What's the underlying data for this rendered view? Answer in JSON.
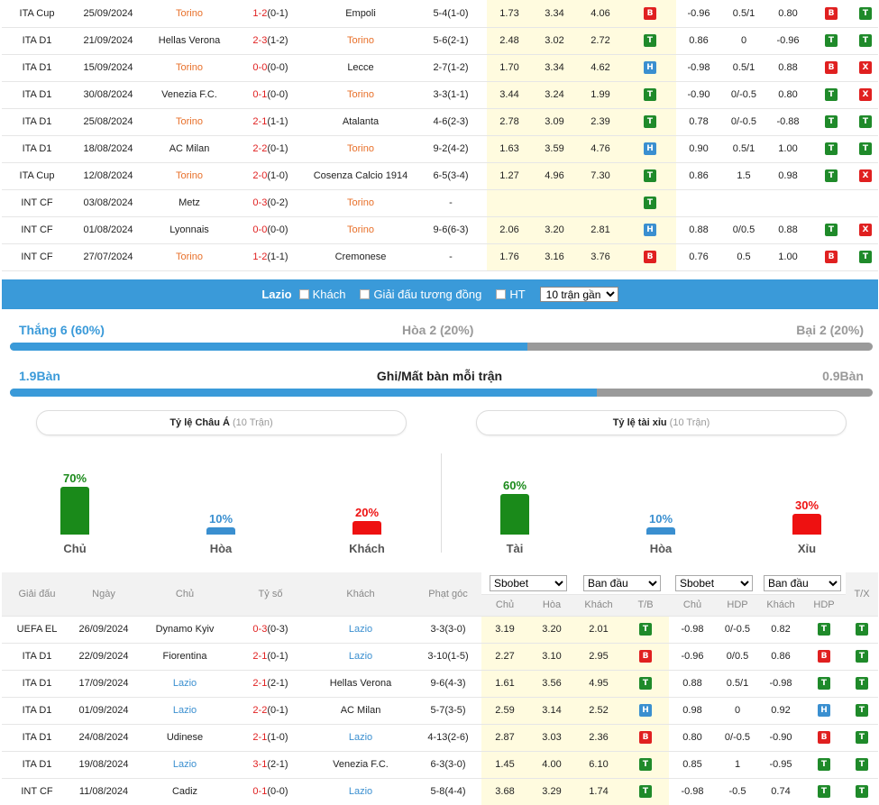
{
  "top_rows": [
    {
      "league": "ITA Cup",
      "date": "25/09/2024",
      "home": "Torino",
      "score": "1-2",
      "ht": "(0-1)",
      "away": "Empoli",
      "corner": "5-4(1-0)",
      "o1": "1.73",
      "o2": "3.34",
      "o3": "4.06",
      "res": "B",
      "h1": "-0.96",
      "h2": "0.5/1",
      "h3": "0.80",
      "r1": "B",
      "r2": "T",
      "hl": "home"
    },
    {
      "league": "ITA D1",
      "date": "21/09/2024",
      "home": "Hellas Verona",
      "score": "2-3",
      "ht": "(1-2)",
      "away": "Torino",
      "corner": "5-6(2-1)",
      "o1": "2.48",
      "o2": "3.02",
      "o3": "2.72",
      "res": "T",
      "h1": "0.86",
      "h2": "0",
      "h3": "-0.96",
      "r1": "T",
      "r2": "T",
      "hl": "away"
    },
    {
      "league": "ITA D1",
      "date": "15/09/2024",
      "home": "Torino",
      "score": "0-0",
      "ht": "(0-0)",
      "away": "Lecce",
      "corner": "2-7(1-2)",
      "o1": "1.70",
      "o2": "3.34",
      "o3": "4.62",
      "res": "H",
      "h1": "-0.98",
      "h2": "0.5/1",
      "h3": "0.88",
      "r1": "B",
      "r2": "X",
      "hl": "home"
    },
    {
      "league": "ITA D1",
      "date": "30/08/2024",
      "home": "Venezia F.C.",
      "score": "0-1",
      "ht": "(0-0)",
      "away": "Torino",
      "corner": "3-3(1-1)",
      "o1": "3.44",
      "o2": "3.24",
      "o3": "1.99",
      "res": "T",
      "h1": "-0.90",
      "h2": "0/-0.5",
      "h3": "0.80",
      "r1": "T",
      "r2": "X",
      "hl": "away"
    },
    {
      "league": "ITA D1",
      "date": "25/08/2024",
      "home": "Torino",
      "score": "2-1",
      "ht": "(1-1)",
      "away": "Atalanta",
      "corner": "4-6(2-3)",
      "o1": "2.78",
      "o2": "3.09",
      "o3": "2.39",
      "res": "T",
      "h1": "0.78",
      "h2": "0/-0.5",
      "h3": "-0.88",
      "r1": "T",
      "r2": "T",
      "hl": "home"
    },
    {
      "league": "ITA D1",
      "date": "18/08/2024",
      "home": "AC Milan",
      "score": "2-2",
      "ht": "(0-1)",
      "away": "Torino",
      "corner": "9-2(4-2)",
      "o1": "1.63",
      "o2": "3.59",
      "o3": "4.76",
      "res": "H",
      "h1": "0.90",
      "h2": "0.5/1",
      "h3": "1.00",
      "r1": "T",
      "r2": "T",
      "hl": "away"
    },
    {
      "league": "ITA Cup",
      "date": "12/08/2024",
      "home": "Torino",
      "score": "2-0",
      "ht": "(1-0)",
      "away": "Cosenza Calcio 1914",
      "corner": "6-5(3-4)",
      "o1": "1.27",
      "o2": "4.96",
      "o3": "7.30",
      "res": "T",
      "h1": "0.86",
      "h2": "1.5",
      "h3": "0.98",
      "r1": "T",
      "r2": "X",
      "hl": "home"
    },
    {
      "league": "INT CF",
      "date": "03/08/2024",
      "home": "Metz",
      "score": "0-3",
      "ht": "(0-2)",
      "away": "Torino",
      "corner": "-",
      "o1": "",
      "o2": "",
      "o3": "",
      "res": "T",
      "h1": "",
      "h2": "",
      "h3": "",
      "r1": "",
      "r2": "",
      "hl": "away"
    },
    {
      "league": "INT CF",
      "date": "01/08/2024",
      "home": "Lyonnais",
      "score": "0-0",
      "ht": "(0-0)",
      "away": "Torino",
      "corner": "9-6(6-3)",
      "o1": "2.06",
      "o2": "3.20",
      "o3": "2.81",
      "res": "H",
      "h1": "0.88",
      "h2": "0/0.5",
      "h3": "0.88",
      "r1": "T",
      "r2": "X",
      "hl": "away"
    },
    {
      "league": "INT CF",
      "date": "27/07/2024",
      "home": "Torino",
      "score": "1-2",
      "ht": "(1-1)",
      "away": "Cremonese",
      "corner": "-",
      "o1": "1.76",
      "o2": "3.16",
      "o3": "3.76",
      "res": "B",
      "h1": "0.76",
      "h2": "0.5",
      "h3": "1.00",
      "r1": "B",
      "r2": "T",
      "hl": "home"
    }
  ],
  "filter_bar": {
    "team": "Lazio",
    "opt_away": "Khách",
    "opt_same_league": "Giải đấu tương đồng",
    "opt_ht": "HT",
    "select_value": "10 trận gần"
  },
  "summary": {
    "win": "Thắng 6 (60%)",
    "draw": "Hòa 2 (20%)",
    "loss": "Bại 2 (20%)",
    "win_fraction": 0.6,
    "goals_for": "1.9Bàn",
    "goals_title": "Ghi/Mất bàn mỗi trận",
    "goals_against": "0.9Bàn",
    "goals_fraction": 0.68
  },
  "asian_box": {
    "title": "Tỷ lệ Châu Á",
    "sub": "(10 Trận)"
  },
  "ou_box": {
    "title": "Tỷ lệ tài xỉu",
    "sub": "(10 Trận)"
  },
  "asian_bars": [
    {
      "pct": "70%",
      "value": 70,
      "label": "Chủ",
      "color": "#1a8a1a"
    },
    {
      "pct": "10%",
      "value": 10,
      "label": "Hòa",
      "color": "#3a8fd0"
    },
    {
      "pct": "20%",
      "value": 20,
      "label": "Khách",
      "color": "#ee1111"
    }
  ],
  "ou_bars": [
    {
      "pct": "60%",
      "value": 60,
      "label": "Tài",
      "color": "#1a8a1a"
    },
    {
      "pct": "10%",
      "value": 10,
      "label": "Hòa",
      "color": "#3a8fd0"
    },
    {
      "pct": "30%",
      "value": 30,
      "label": "Xỉu",
      "color": "#ee1111"
    }
  ],
  "bottom_header": {
    "league": "Giải đấu",
    "date": "Ngày",
    "home": "Chủ",
    "score": "Tỷ số",
    "away": "Khách",
    "corner": "Phạt góc",
    "book1": "Sbobet",
    "type1": "Ban đầu",
    "book2": "Sbobet",
    "type2": "Ban đầu",
    "c_home": "Chủ",
    "c_draw": "Hòa",
    "c_away": "Khách",
    "c_tb": "T/B",
    "c_home2": "Chủ",
    "c_hdp": "HDP",
    "c_away2": "Khách",
    "c_hdp2": "HDP",
    "c_tx": "T/X"
  },
  "bottom_rows": [
    {
      "league": "UEFA EL",
      "date": "26/09/2024",
      "home": "Dynamo Kyiv",
      "score": "0-3",
      "ht": "(0-3)",
      "away": "Lazio",
      "corner": "3-3(3-0)",
      "o1": "3.19",
      "o2": "3.20",
      "o3": "2.01",
      "res": "T",
      "h1": "-0.98",
      "h2": "0/-0.5",
      "h3": "0.82",
      "r1": "T",
      "r2": "T",
      "hl": "away"
    },
    {
      "league": "ITA D1",
      "date": "22/09/2024",
      "home": "Fiorentina",
      "score": "2-1",
      "ht": "(0-1)",
      "away": "Lazio",
      "corner": "3-10(1-5)",
      "o1": "2.27",
      "o2": "3.10",
      "o3": "2.95",
      "res": "B",
      "h1": "-0.96",
      "h2": "0/0.5",
      "h3": "0.86",
      "r1": "B",
      "r2": "T",
      "hl": "away"
    },
    {
      "league": "ITA D1",
      "date": "17/09/2024",
      "home": "Lazio",
      "score": "2-1",
      "ht": "(2-1)",
      "away": "Hellas Verona",
      "corner": "9-6(4-3)",
      "o1": "1.61",
      "o2": "3.56",
      "o3": "4.95",
      "res": "T",
      "h1": "0.88",
      "h2": "0.5/1",
      "h3": "-0.98",
      "r1": "T",
      "r2": "T",
      "hl": "home"
    },
    {
      "league": "ITA D1",
      "date": "01/09/2024",
      "home": "Lazio",
      "score": "2-2",
      "ht": "(0-1)",
      "away": "AC Milan",
      "corner": "5-7(3-5)",
      "o1": "2.59",
      "o2": "3.14",
      "o3": "2.52",
      "res": "H",
      "h1": "0.98",
      "h2": "0",
      "h3": "0.92",
      "r1": "H",
      "r2": "T",
      "hl": "home"
    },
    {
      "league": "ITA D1",
      "date": "24/08/2024",
      "home": "Udinese",
      "score": "2-1",
      "ht": "(1-0)",
      "away": "Lazio",
      "corner": "4-13(2-6)",
      "o1": "2.87",
      "o2": "3.03",
      "o3": "2.36",
      "res": "B",
      "h1": "0.80",
      "h2": "0/-0.5",
      "h3": "-0.90",
      "r1": "B",
      "r2": "T",
      "hl": "away"
    },
    {
      "league": "ITA D1",
      "date": "19/08/2024",
      "home": "Lazio",
      "score": "3-1",
      "ht": "(2-1)",
      "away": "Venezia F.C.",
      "corner": "6-3(3-0)",
      "o1": "1.45",
      "o2": "4.00",
      "o3": "6.10",
      "res": "T",
      "h1": "0.85",
      "h2": "1",
      "h3": "-0.95",
      "r1": "T",
      "r2": "T",
      "hl": "home"
    },
    {
      "league": "INT CF",
      "date": "11/08/2024",
      "home": "Cadiz",
      "score": "0-1",
      "ht": "(0-0)",
      "away": "Lazio",
      "corner": "5-8(4-4)",
      "o1": "3.68",
      "o2": "3.29",
      "o3": "1.74",
      "res": "T",
      "h1": "-0.98",
      "h2": "-0.5",
      "h3": "0.74",
      "r1": "T",
      "r2": "T",
      "hl": "away"
    }
  ]
}
